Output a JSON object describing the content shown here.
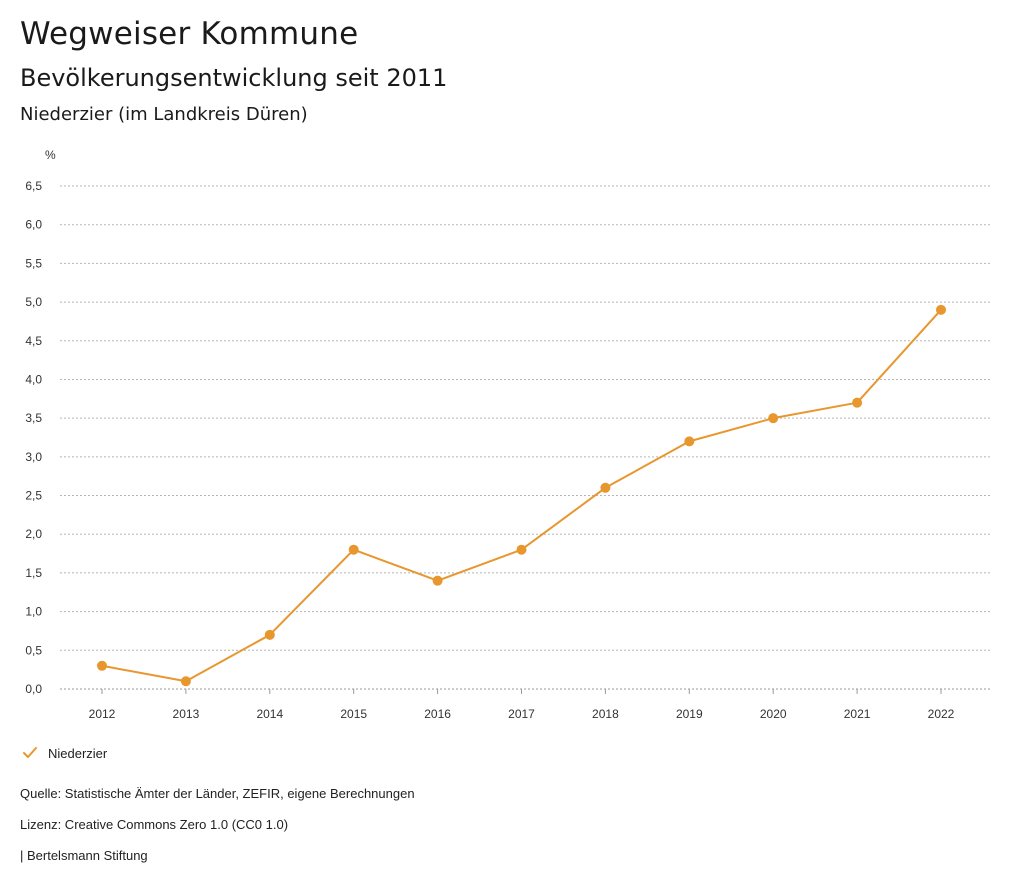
{
  "header": {
    "title": "Wegweiser Kommune",
    "subtitle": "Bevölkerungsentwicklung seit 2011",
    "region": "Niederzier (im Landkreis Düren)"
  },
  "chart_data": {
    "type": "line",
    "unit_label": "%",
    "x": [
      "2012",
      "2013",
      "2014",
      "2015",
      "2016",
      "2017",
      "2018",
      "2019",
      "2020",
      "2021",
      "2022"
    ],
    "series": [
      {
        "name": "Niederzier",
        "color": "#e8962e",
        "values": [
          0.3,
          0.1,
          0.7,
          1.8,
          1.4,
          1.8,
          2.6,
          3.2,
          3.5,
          3.7,
          4.9
        ]
      }
    ],
    "ylim": [
      0,
      6.5
    ],
    "yticks": [
      "0,0",
      "0,5",
      "1,0",
      "1,5",
      "2,0",
      "2,5",
      "3,0",
      "3,5",
      "4,0",
      "4,5",
      "5,0",
      "5,5",
      "6,0",
      "6,5"
    ],
    "ytick_values": [
      0,
      0.5,
      1,
      1.5,
      2,
      2.5,
      3,
      3.5,
      4,
      4.5,
      5,
      5.5,
      6,
      6.5
    ],
    "grid": true,
    "legend_placement": "bottom-left"
  },
  "footer": {
    "source": "Quelle: Statistische Ämter der Länder, ZEFIR, eigene Berechnungen",
    "license": "Lizenz: Creative Commons Zero 1.0 (CC0 1.0)",
    "brand": "| Bertelsmann Stiftung"
  }
}
